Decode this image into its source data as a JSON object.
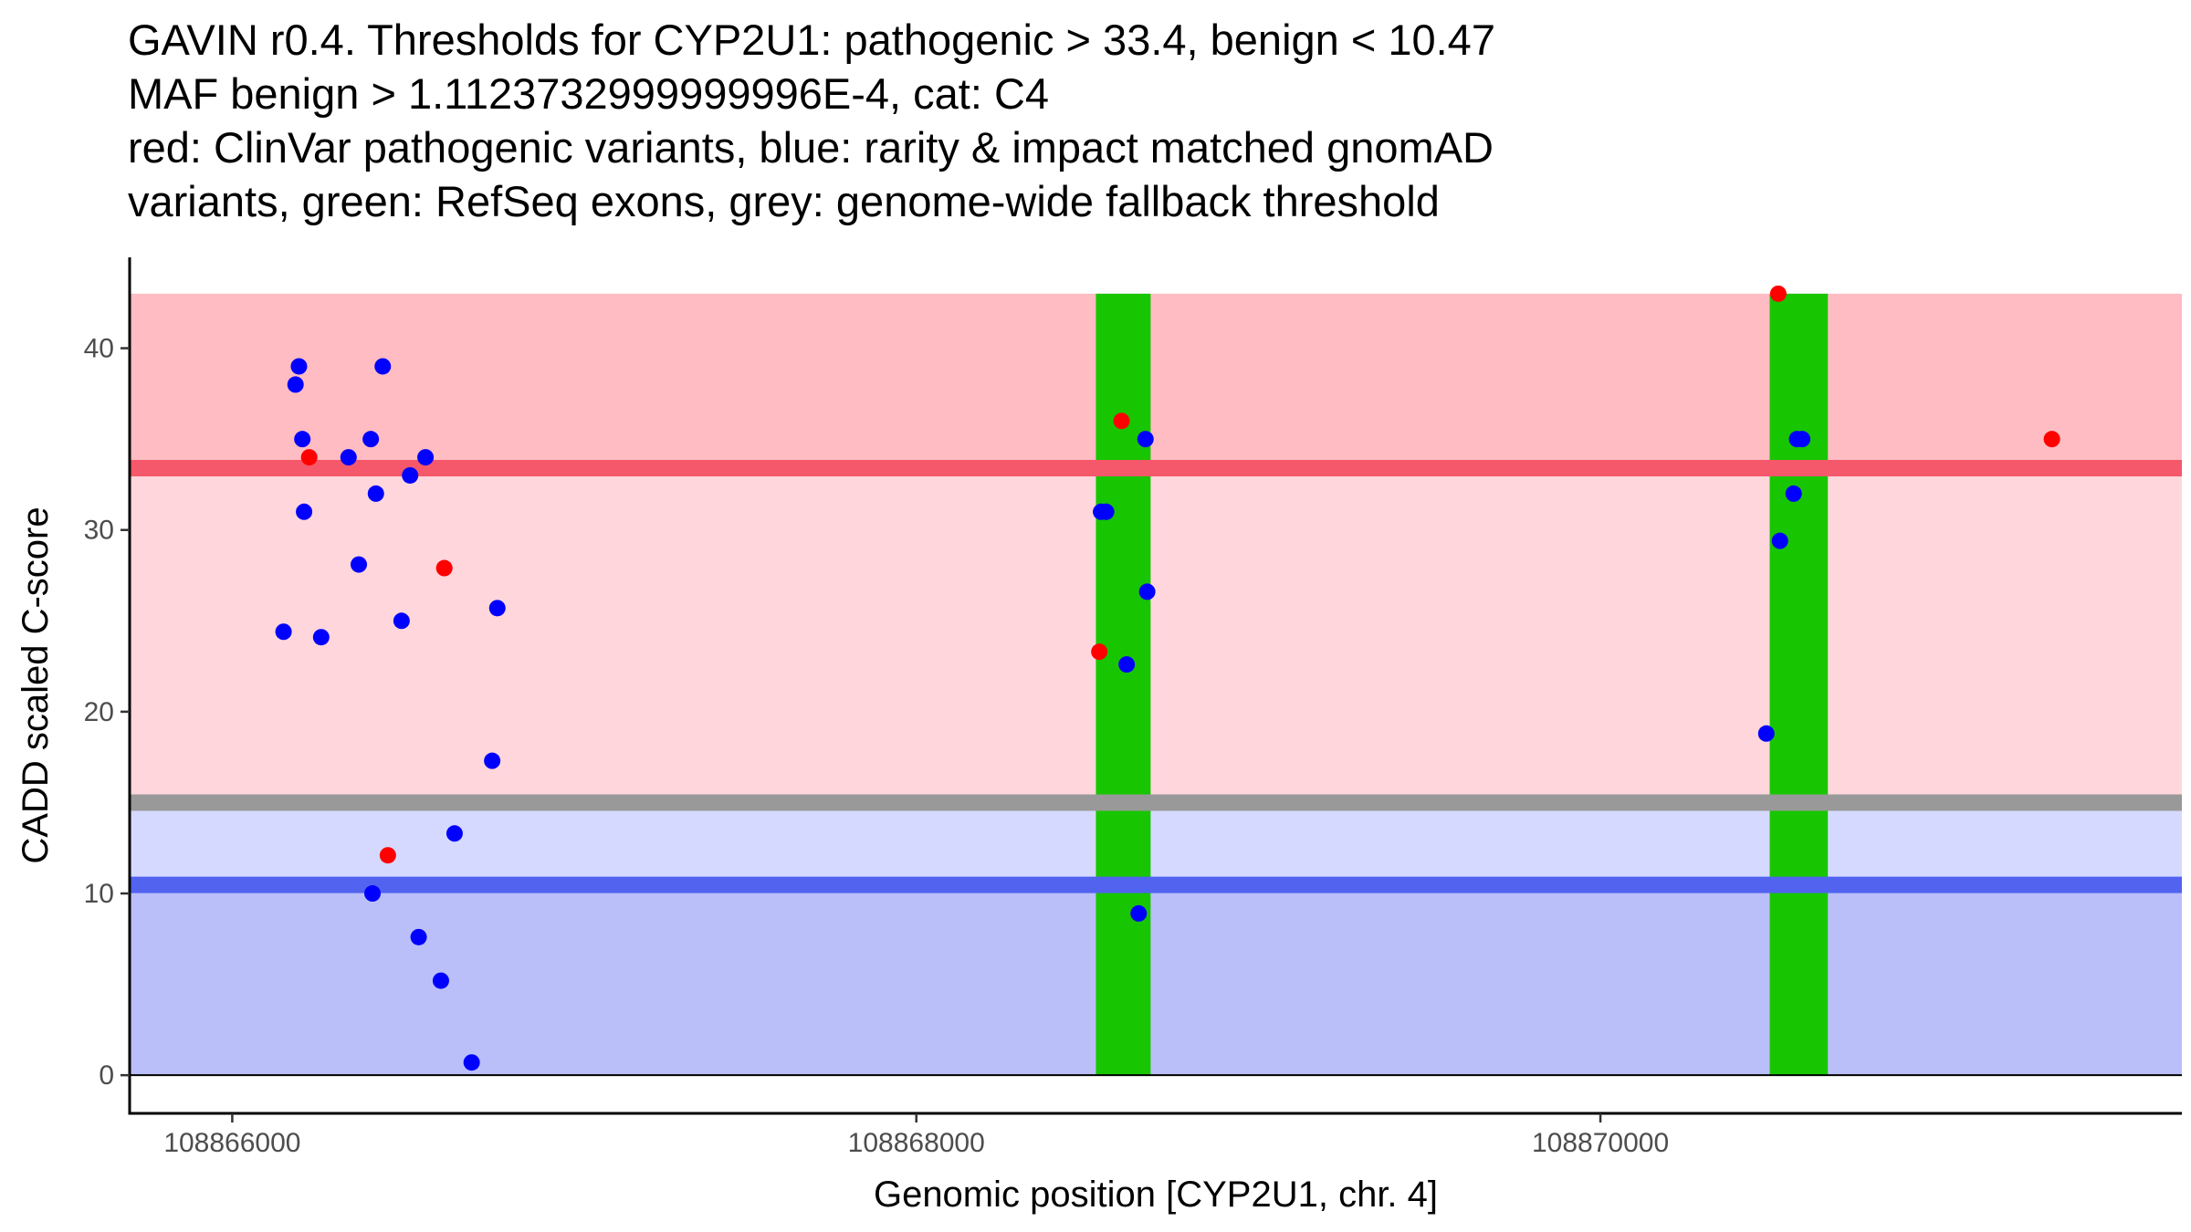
{
  "title_lines": [
    "GAVIN r0.4. Thresholds for CYP2U1: pathogenic > 33.4, benign < 10.47",
    "MAF benign > 1.1123732999999996E-4, cat: C4",
    "red: ClinVar pathogenic variants, blue: rarity & impact matched gnomAD",
    "variants, green: RefSeq exons, grey: genome-wide fallback threshold"
  ],
  "chart_data": {
    "type": "scatter",
    "title": "GAVIN r0.4. Thresholds for CYP2U1: pathogenic > 33.4, benign < 10.47 MAF benign > 1.1123732999999996E-4, cat: C4 red: ClinVar pathogenic variants, blue: rarity & impact matched gnomAD variants, green: RefSeq exons, grey: genome-wide fallback threshold",
    "xlabel": "Genomic position [CYP2U1, chr. 4]",
    "ylabel": "CADD scaled C-score",
    "xlim": [
      108865700,
      108871700
    ],
    "ylim": [
      -2.1,
      45
    ],
    "x_ticks": [
      108866000,
      108868000,
      108870000
    ],
    "x_tick_labels": [
      "108866000",
      "108868000",
      "108870000"
    ],
    "y_ticks": [
      0,
      10,
      20,
      30,
      40
    ],
    "y_tick_labels": [
      "0",
      "10",
      "20",
      "30",
      "40"
    ],
    "grid": false,
    "legend": "none",
    "colors": {
      "pathogenic_zone": "#ffbcc2",
      "grey_to_pathogenic_zone": "#ffd6dc",
      "benign_to_grey_zone": "#d6d9ff",
      "benign_zone": "#babffa",
      "pathogenic_threshold": "#f5586a",
      "benign_threshold": "#5263f0",
      "fallback_threshold": "#999999",
      "exon": "#17c600",
      "pathogenic_point": "#ff0000",
      "gnomad_point": "#0000ff"
    },
    "bands": [
      {
        "name": "pathogenic-zone",
        "y0": 33.4,
        "y1": 43
      },
      {
        "name": "grey-to-pathogenic-zone",
        "y0": 15,
        "y1": 33.4
      },
      {
        "name": "benign-to-grey-zone",
        "y0": 10.47,
        "y1": 15
      },
      {
        "name": "benign-zone",
        "y0": 0,
        "y1": 10.47
      }
    ],
    "thresholds": [
      {
        "name": "pathogenic-threshold",
        "y": 33.4
      },
      {
        "name": "fallback-threshold",
        "y": 15
      },
      {
        "name": "benign-threshold",
        "y": 10.47
      }
    ],
    "exons": [
      {
        "start": 108868525,
        "end": 108868685
      },
      {
        "start": 108870495,
        "end": 108870665
      }
    ],
    "region": {
      "x0": 108865700,
      "x1": 108871700,
      "y0": 0,
      "y1": 43
    },
    "series": [
      {
        "name": "ClinVar pathogenic variants",
        "points": [
          {
            "x": 108866225,
            "y": 34
          },
          {
            "x": 108866455,
            "y": 12.1
          },
          {
            "x": 108866620,
            "y": 27.9
          },
          {
            "x": 108868535,
            "y": 23.3
          },
          {
            "x": 108868600,
            "y": 36
          },
          {
            "x": 108870520,
            "y": 43
          },
          {
            "x": 108871320,
            "y": 35
          }
        ]
      },
      {
        "name": "gnomAD variants",
        "points": [
          {
            "x": 108866150,
            "y": 24.4
          },
          {
            "x": 108866185,
            "y": 38
          },
          {
            "x": 108866195,
            "y": 39
          },
          {
            "x": 108866205,
            "y": 35
          },
          {
            "x": 108866210,
            "y": 31
          },
          {
            "x": 108866260,
            "y": 24.1
          },
          {
            "x": 108866340,
            "y": 34
          },
          {
            "x": 108866370,
            "y": 28.1
          },
          {
            "x": 108866405,
            "y": 35
          },
          {
            "x": 108866420,
            "y": 32
          },
          {
            "x": 108866410,
            "y": 10
          },
          {
            "x": 108866440,
            "y": 39
          },
          {
            "x": 108866495,
            "y": 25
          },
          {
            "x": 108866520,
            "y": 33
          },
          {
            "x": 108866545,
            "y": 7.6
          },
          {
            "x": 108866565,
            "y": 34
          },
          {
            "x": 108866610,
            "y": 5.2
          },
          {
            "x": 108866650,
            "y": 13.3
          },
          {
            "x": 108866700,
            "y": 0.7
          },
          {
            "x": 108866760,
            "y": 17.3
          },
          {
            "x": 108866775,
            "y": 25.7
          },
          {
            "x": 108868540,
            "y": 31
          },
          {
            "x": 108868555,
            "y": 31
          },
          {
            "x": 108868615,
            "y": 22.6
          },
          {
            "x": 108868650,
            "y": 8.9
          },
          {
            "x": 108868670,
            "y": 35
          },
          {
            "x": 108868675,
            "y": 26.6
          },
          {
            "x": 108870485,
            "y": 18.8
          },
          {
            "x": 108870525,
            "y": 29.4
          },
          {
            "x": 108870565,
            "y": 32
          },
          {
            "x": 108870575,
            "y": 35
          },
          {
            "x": 108870590,
            "y": 35
          }
        ]
      }
    ]
  }
}
